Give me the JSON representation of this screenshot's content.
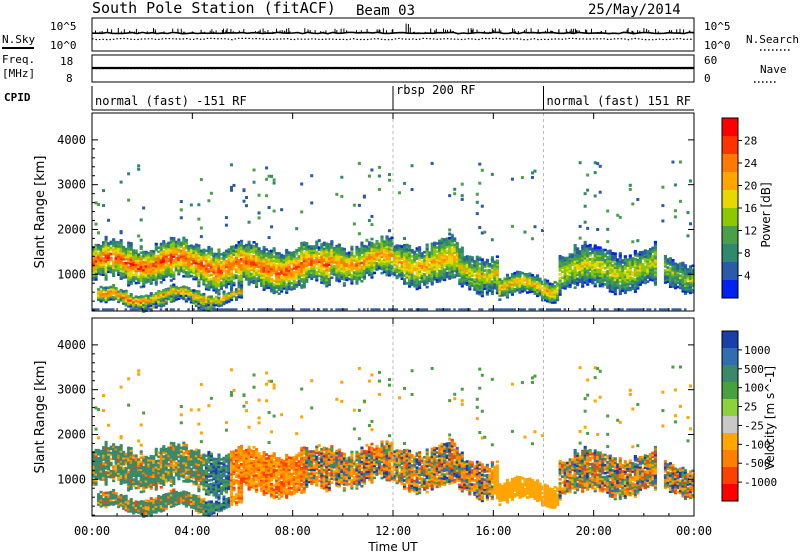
{
  "header": {
    "station": "South Pole Station (fitACF)",
    "beam": "Beam 03",
    "date": "25/May/2014"
  },
  "top_panels": {
    "nsky_label": "N.Sky",
    "nsearch_label": "N.Search",
    "freq_label_1": "Freq.",
    "freq_label_2": "[MHz]",
    "nave_label": "Nave",
    "cpid_label": "CPID",
    "noise_ticks_left": [
      "10^5",
      "10^0"
    ],
    "noise_ticks_right": [
      "10^5",
      "10^0"
    ],
    "freq_ticks_left": [
      "18",
      "8"
    ],
    "nave_ticks_right": [
      "60",
      "0"
    ],
    "freq_range_mhz": [
      8,
      18
    ],
    "nave_range": [
      0,
      60
    ],
    "freq_level_mhz": 13.2,
    "nave_level": 30
  },
  "cpid_segments": [
    {
      "label": "normal (fast) -151 RF",
      "start_h": 0,
      "end_h": 12
    },
    {
      "label": "rbsp 200 RF",
      "start_h": 12,
      "end_h": 18
    },
    {
      "label": "normal (fast) 151 RF",
      "start_h": 18,
      "end_h": 24
    }
  ],
  "chart_data": [
    {
      "type": "heatmap",
      "name": "power",
      "ylabel": "Slant Range [km]",
      "xlabel": "",
      "x_range_h": [
        0,
        24
      ],
      "y_range_km": [
        180,
        4600
      ],
      "yticks": [
        "1000",
        "2000",
        "3000",
        "4000"
      ],
      "ytick_values": [
        1000,
        2000,
        3000,
        4000
      ],
      "colorbar_label": "Power [dB]",
      "colorbar_ticks": [
        "28",
        "24",
        "20",
        "16",
        "12",
        "8",
        "4"
      ],
      "colorbar_colors": [
        "#ff0000",
        "#ff3300",
        "#ff7a00",
        "#ffa500",
        "#e8d800",
        "#8cc800",
        "#4aa048",
        "#2e8a6a",
        "#2a5aa8",
        "#0022ee"
      ],
      "colorbar_range_db": [
        0,
        32
      ]
    },
    {
      "type": "heatmap",
      "name": "velocity",
      "ylabel": "Slant Range [km]",
      "xlabel": "Time UT",
      "x_range_h": [
        0,
        24
      ],
      "y_range_km": [
        180,
        4600
      ],
      "yticks": [
        "1000",
        "2000",
        "3000",
        "4000"
      ],
      "ytick_values": [
        1000,
        2000,
        3000,
        4000
      ],
      "xticks": [
        "00:00",
        "04:00",
        "08:00",
        "12:00",
        "16:00",
        "20:00",
        "00:00"
      ],
      "xtick_values_h": [
        0,
        4,
        8,
        12,
        16,
        20,
        24
      ],
      "colorbar_label": "Velocity [m s^-1]",
      "colorbar_ticks": [
        "1000",
        "500",
        "100",
        "25",
        "-25",
        "-100",
        "-500",
        "-1000"
      ],
      "colorbar_colors": [
        "#1a3fa8",
        "#2f6fb0",
        "#3a8a6a",
        "#48a040",
        "#8cd23c",
        "#c8c8c8",
        "#ffa500",
        "#ff8000",
        "#ff4000",
        "#ff0000"
      ]
    }
  ]
}
